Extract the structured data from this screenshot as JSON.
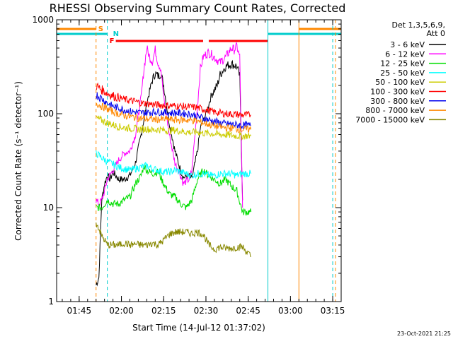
{
  "chart_data": {
    "type": "line",
    "title": "RHESSI Observing Summary Count Rates, Corrected",
    "xlabel": "Start Time (14-Jul-12 01:37:02)",
    "ylabel": "Corrected Count Rate (s⁻¹ detector⁻¹)",
    "yscale": "log",
    "ylim": [
      1,
      1000
    ],
    "xlim_min": [
      0,
      101
    ],
    "y_ticks": [
      {
        "value": 1,
        "label": "1"
      },
      {
        "value": 10,
        "label": "10"
      },
      {
        "value": 100,
        "label": "100"
      },
      {
        "value": 1000,
        "label": "1000"
      }
    ],
    "x_ticks": [
      {
        "value": 8,
        "label": "01:45"
      },
      {
        "value": 23,
        "label": "02:00"
      },
      {
        "value": 38,
        "label": "02:15"
      },
      {
        "value": 53,
        "label": "02:30"
      },
      {
        "value": 68,
        "label": "02:45"
      },
      {
        "value": 83,
        "label": "03:00"
      },
      {
        "value": 98,
        "label": "03:15"
      }
    ],
    "legend_header": [
      "Det 1,3,5,6,9,",
      "Att 0"
    ],
    "series": [
      {
        "name": "3 - 6 keV",
        "color": "#000000",
        "points": [
          [
            14,
            1.5
          ],
          [
            15,
            1.8
          ],
          [
            16,
            12
          ],
          [
            17,
            18
          ],
          [
            18,
            22
          ],
          [
            19,
            20
          ],
          [
            20,
            24
          ],
          [
            22,
            20
          ],
          [
            24,
            20
          ],
          [
            26,
            22
          ],
          [
            28,
            30
          ],
          [
            30,
            60
          ],
          [
            32,
            130
          ],
          [
            34,
            230
          ],
          [
            35,
            270
          ],
          [
            36,
            250
          ],
          [
            37,
            270
          ],
          [
            38,
            200
          ],
          [
            40,
            80
          ],
          [
            42,
            40
          ],
          [
            44,
            25
          ],
          [
            45,
            21
          ],
          [
            47,
            22
          ],
          [
            48,
            20
          ],
          [
            50,
            40
          ],
          [
            51,
            70
          ],
          [
            53,
            100
          ],
          [
            55,
            160
          ],
          [
            57,
            200
          ],
          [
            58,
            260
          ],
          [
            60,
            320
          ],
          [
            62,
            340
          ],
          [
            64,
            320
          ],
          [
            65,
            250
          ],
          [
            66,
            12
          ]
        ]
      },
      {
        "name": "6 - 12 keV",
        "color": "#ff00ff",
        "points": [
          [
            14,
            12
          ],
          [
            15,
            11
          ],
          [
            16,
            12
          ],
          [
            17,
            15
          ],
          [
            18,
            20
          ],
          [
            20,
            25
          ],
          [
            22,
            32
          ],
          [
            24,
            38
          ],
          [
            26,
            40
          ],
          [
            28,
            60
          ],
          [
            30,
            150
          ],
          [
            31,
            300
          ],
          [
            32,
            500
          ],
          [
            33,
            400
          ],
          [
            34,
            360
          ],
          [
            35,
            480
          ],
          [
            36,
            350
          ],
          [
            37,
            300
          ],
          [
            38,
            150
          ],
          [
            40,
            60
          ],
          [
            42,
            30
          ],
          [
            44,
            22
          ],
          [
            45,
            18
          ],
          [
            47,
            20
          ],
          [
            48,
            25
          ],
          [
            50,
            120
          ],
          [
            51,
            300
          ],
          [
            52,
            400
          ],
          [
            53,
            430
          ],
          [
            54,
            450
          ],
          [
            56,
            400
          ],
          [
            58,
            350
          ],
          [
            60,
            400
          ],
          [
            62,
            500
          ],
          [
            63,
            480
          ],
          [
            64,
            520
          ],
          [
            65,
            400
          ],
          [
            66,
            10
          ]
        ]
      },
      {
        "name": "12 - 25 keV",
        "color": "#00dd00",
        "points": [
          [
            14,
            10
          ],
          [
            16,
            10
          ],
          [
            18,
            12
          ],
          [
            20,
            11
          ],
          [
            22,
            11
          ],
          [
            24,
            12
          ],
          [
            26,
            13
          ],
          [
            28,
            18
          ],
          [
            30,
            22
          ],
          [
            31,
            28
          ],
          [
            32,
            25
          ],
          [
            34,
            23
          ],
          [
            36,
            24
          ],
          [
            38,
            18
          ],
          [
            40,
            14
          ],
          [
            42,
            13
          ],
          [
            44,
            11
          ],
          [
            46,
            10
          ],
          [
            48,
            12
          ],
          [
            50,
            20
          ],
          [
            52,
            25
          ],
          [
            54,
            22
          ],
          [
            56,
            20
          ],
          [
            58,
            18
          ],
          [
            60,
            20
          ],
          [
            62,
            17
          ],
          [
            64,
            15
          ],
          [
            66,
            9
          ],
          [
            69,
            9
          ]
        ]
      },
      {
        "name": "25 - 50 keV",
        "color": "#00ffff",
        "points": [
          [
            14,
            38
          ],
          [
            16,
            34
          ],
          [
            18,
            31
          ],
          [
            20,
            29
          ],
          [
            22,
            27
          ],
          [
            24,
            26
          ],
          [
            26,
            25
          ],
          [
            28,
            26
          ],
          [
            30,
            27
          ],
          [
            32,
            28
          ],
          [
            34,
            26
          ],
          [
            36,
            25
          ],
          [
            38,
            24
          ],
          [
            40,
            24
          ],
          [
            42,
            25
          ],
          [
            44,
            24
          ],
          [
            46,
            23
          ],
          [
            48,
            22
          ],
          [
            50,
            23
          ],
          [
            52,
            23
          ],
          [
            54,
            22
          ],
          [
            56,
            22
          ],
          [
            58,
            23
          ],
          [
            60,
            23
          ],
          [
            62,
            23
          ],
          [
            64,
            22
          ],
          [
            66,
            23
          ],
          [
            69,
            23
          ]
        ]
      },
      {
        "name": "50 - 100 keV",
        "color": "#cccc00",
        "points": [
          [
            14,
            90
          ],
          [
            16,
            85
          ],
          [
            18,
            80
          ],
          [
            20,
            76
          ],
          [
            22,
            73
          ],
          [
            24,
            71
          ],
          [
            26,
            70
          ],
          [
            28,
            69
          ],
          [
            30,
            68
          ],
          [
            32,
            69
          ],
          [
            34,
            67
          ],
          [
            36,
            68
          ],
          [
            38,
            67
          ],
          [
            40,
            66
          ],
          [
            42,
            67
          ],
          [
            44,
            65
          ],
          [
            46,
            64
          ],
          [
            48,
            63
          ],
          [
            50,
            64
          ],
          [
            52,
            62
          ],
          [
            54,
            62
          ],
          [
            56,
            61
          ],
          [
            58,
            60
          ],
          [
            60,
            60
          ],
          [
            62,
            59
          ],
          [
            64,
            58
          ],
          [
            66,
            58
          ],
          [
            69,
            58
          ]
        ]
      },
      {
        "name": "100 - 300 keV",
        "color": "#ff0000",
        "points": [
          [
            14,
            200
          ],
          [
            16,
            180
          ],
          [
            18,
            165
          ],
          [
            20,
            155
          ],
          [
            22,
            148
          ],
          [
            24,
            142
          ],
          [
            26,
            138
          ],
          [
            28,
            135
          ],
          [
            30,
            130
          ],
          [
            32,
            128
          ],
          [
            34,
            126
          ],
          [
            36,
            124
          ],
          [
            38,
            123
          ],
          [
            40,
            122
          ],
          [
            42,
            121
          ],
          [
            44,
            120
          ],
          [
            46,
            119
          ],
          [
            48,
            118
          ],
          [
            50,
            116
          ],
          [
            52,
            112
          ],
          [
            54,
            108
          ],
          [
            56,
            104
          ],
          [
            58,
            102
          ],
          [
            60,
            100
          ],
          [
            62,
            99
          ],
          [
            64,
            98
          ],
          [
            66,
            97
          ],
          [
            69,
            97
          ]
        ]
      },
      {
        "name": "300 - 800 keV",
        "color": "#0000ee",
        "points": [
          [
            14,
            160
          ],
          [
            16,
            145
          ],
          [
            18,
            130
          ],
          [
            20,
            120
          ],
          [
            22,
            115
          ],
          [
            24,
            110
          ],
          [
            26,
            106
          ],
          [
            28,
            104
          ],
          [
            30,
            102
          ],
          [
            32,
            103
          ],
          [
            34,
            104
          ],
          [
            36,
            105
          ],
          [
            38,
            103
          ],
          [
            40,
            102
          ],
          [
            42,
            102
          ],
          [
            44,
            101
          ],
          [
            46,
            100
          ],
          [
            48,
            98
          ],
          [
            50,
            94
          ],
          [
            52,
            90
          ],
          [
            54,
            86
          ],
          [
            56,
            83
          ],
          [
            58,
            80
          ],
          [
            60,
            78
          ],
          [
            62,
            77
          ],
          [
            64,
            76
          ],
          [
            66,
            75
          ],
          [
            69,
            75
          ]
        ]
      },
      {
        "name": "800 - 7000 keV",
        "color": "#ff8800",
        "points": [
          [
            14,
            130
          ],
          [
            16,
            120
          ],
          [
            18,
            112
          ],
          [
            20,
            105
          ],
          [
            22,
            100
          ],
          [
            24,
            96
          ],
          [
            26,
            93
          ],
          [
            28,
            91
          ],
          [
            30,
            89
          ],
          [
            32,
            88
          ],
          [
            34,
            87
          ],
          [
            36,
            87
          ],
          [
            38,
            87
          ],
          [
            40,
            87
          ],
          [
            42,
            86
          ],
          [
            44,
            86
          ],
          [
            46,
            86
          ],
          [
            48,
            85
          ],
          [
            50,
            83
          ],
          [
            52,
            80
          ],
          [
            54,
            77
          ],
          [
            56,
            74
          ],
          [
            58,
            72
          ],
          [
            60,
            71
          ],
          [
            62,
            70
          ],
          [
            64,
            69
          ],
          [
            66,
            68
          ],
          [
            69,
            68
          ]
        ]
      },
      {
        "name": "7000 - 15000 keV",
        "color": "#888800",
        "points": [
          [
            14,
            7
          ],
          [
            15,
            6
          ],
          [
            16,
            5
          ],
          [
            17,
            4.5
          ],
          [
            18,
            4
          ],
          [
            20,
            4
          ],
          [
            22,
            4
          ],
          [
            24,
            4.2
          ],
          [
            26,
            4
          ],
          [
            28,
            4.1
          ],
          [
            30,
            4
          ],
          [
            32,
            4
          ],
          [
            34,
            4.2
          ],
          [
            36,
            4
          ],
          [
            38,
            4.5
          ],
          [
            40,
            5.2
          ],
          [
            42,
            5.5
          ],
          [
            44,
            5.5
          ],
          [
            46,
            5.5
          ],
          [
            48,
            5.3
          ],
          [
            50,
            5.5
          ],
          [
            52,
            5.2
          ],
          [
            54,
            4
          ],
          [
            56,
            3.6
          ],
          [
            58,
            3.8
          ],
          [
            60,
            3.7
          ],
          [
            62,
            3.7
          ],
          [
            64,
            3.8
          ],
          [
            66,
            3.8
          ],
          [
            69,
            3
          ]
        ]
      }
    ],
    "annotations": [
      {
        "label": "S",
        "color": "#ff8800",
        "minute": 14
      },
      {
        "label": "N",
        "color": "#00cccc",
        "minute": 18
      },
      {
        "label": "F",
        "color": "#ff0000",
        "minute": 18
      }
    ],
    "markers": {
      "saa_color": "#ff8800",
      "night_color": "#00cccc",
      "flare_color": "#ff0000",
      "saa_spans": [
        [
          0,
          14
        ],
        [
          86,
          101
        ]
      ],
      "night_spans": [
        [
          0,
          18
        ],
        [
          75,
          101
        ]
      ],
      "flare_spans": [
        [
          21,
          52
        ],
        [
          54,
          75
        ]
      ],
      "vlines": [
        {
          "minute": 14,
          "color": "#ff8800",
          "dashed": true
        },
        {
          "minute": 18,
          "color": "#00cccc",
          "dashed": true
        },
        {
          "minute": 0,
          "color": "#00cccc",
          "dashed": false
        },
        {
          "minute": 75,
          "color": "#00cccc",
          "dashed": false
        },
        {
          "minute": 86,
          "color": "#ff8800",
          "dashed": false
        },
        {
          "minute": 98,
          "color": "#00cccc",
          "dashed": true
        },
        {
          "minute": 99,
          "color": "#ff8800",
          "dashed": true
        }
      ]
    },
    "footer_date": "23-Oct-2021 21:25"
  }
}
